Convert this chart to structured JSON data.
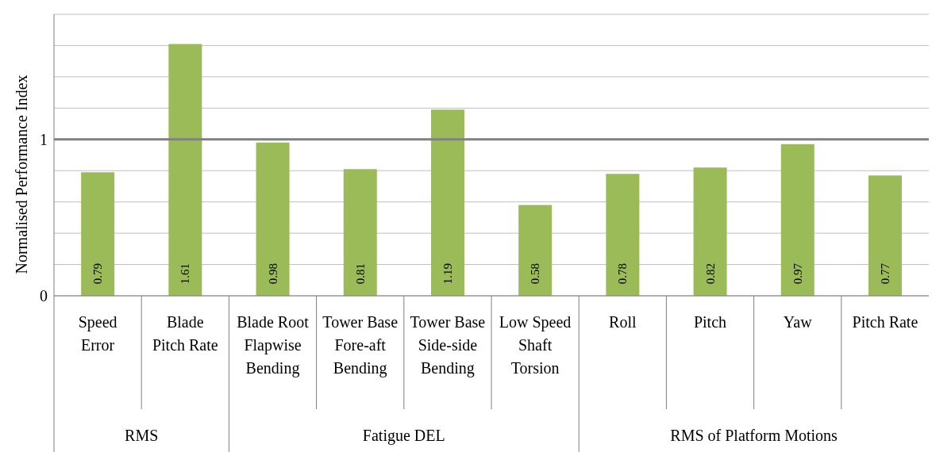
{
  "chart_data": {
    "type": "bar",
    "ylabel": "Normalised Performance Index",
    "categories": [
      "Speed Error",
      "Blade Pitch Rate",
      "Blade Root Flapwise Bending",
      "Tower Base Fore-aft Bending",
      "Tower Base Side-side Bending",
      "Low Speed Shaft Torsion",
      "Roll",
      "Pitch",
      "Yaw",
      "Pitch Rate"
    ],
    "values": [
      0.79,
      1.61,
      0.98,
      0.81,
      1.19,
      0.58,
      0.78,
      0.82,
      0.97,
      0.77
    ],
    "color": "#9bbb59",
    "ylim": [
      0,
      1.8
    ],
    "yticks": [
      0,
      {
        "value": 0.2,
        "label": null
      },
      {
        "value": 0.4,
        "label": null
      },
      {
        "value": 0.6,
        "label": null
      },
      {
        "value": 0.8,
        "label": null
      },
      {
        "value": 1,
        "label": "1"
      },
      {
        "value": 1.2,
        "label": null
      },
      {
        "value": 1.4,
        "label": null
      },
      {
        "value": 1.6,
        "label": null
      },
      {
        "value": 1.8,
        "label": null
      }
    ],
    "grid": "y",
    "data_labels": true,
    "ref_lines": [
      {
        "axis": "y",
        "value": 1,
        "color": "#808080"
      }
    ],
    "annotations": [
      "RMS",
      "Fatigue DEL",
      "RMS of Platform Motions"
    ]
  }
}
